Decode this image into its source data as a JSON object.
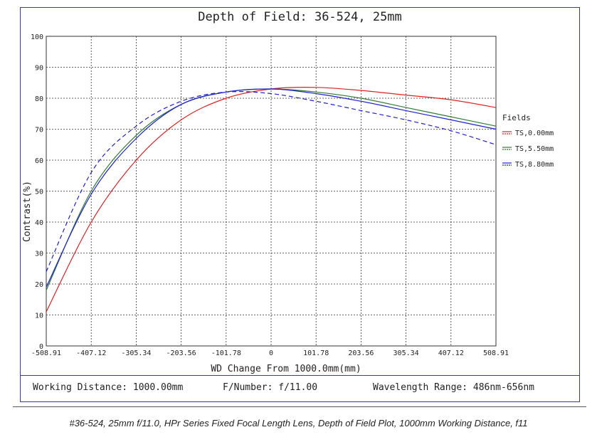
{
  "chart_data": {
    "type": "line",
    "title": "Depth of Field: 36-524, 25mm",
    "xlabel": "WD Change From 1000.0mm(mm)",
    "ylabel": "Contrast(%)",
    "xlim": [
      -508.91,
      508.91
    ],
    "ylim": [
      0,
      100
    ],
    "x_ticks": [
      -508.91,
      -407.12,
      -305.34,
      -203.56,
      -101.78,
      0,
      101.78,
      203.56,
      305.34,
      407.12,
      508.91
    ],
    "x_tick_labels": [
      "-508.91",
      "-407.12",
      "-305.34",
      "-203.56",
      "-101.78",
      "0",
      "101.78",
      "203.56",
      "305.34",
      "407.12",
      "508.91"
    ],
    "y_ticks": [
      0,
      10,
      20,
      30,
      40,
      50,
      60,
      70,
      80,
      90,
      100
    ],
    "y_tick_labels": [
      "0",
      "10",
      "20",
      "30",
      "40",
      "50",
      "60",
      "70",
      "80",
      "90",
      "100"
    ],
    "grid": true,
    "legend_title": "Fields",
    "legend_position": "right",
    "series": [
      {
        "name": "TS,0.00mm",
        "color": "#e02020",
        "tangential_dash": false,
        "x": [
          -508.91,
          -407.12,
          -305.34,
          -203.56,
          -101.78,
          0,
          101.78,
          203.56,
          305.34,
          407.12,
          508.91
        ],
        "values": [
          11,
          40,
          60,
          73,
          80,
          83,
          83.5,
          82.5,
          81,
          79.5,
          77
        ]
      },
      {
        "name": "TS,5.50mm",
        "color": "#2e7d32",
        "tangential_dash": false,
        "x": [
          -508.91,
          -407.12,
          -305.34,
          -203.56,
          -101.78,
          0,
          101.78,
          203.56,
          305.34,
          407.12,
          508.91
        ],
        "values": [
          18,
          50,
          68,
          78,
          82,
          83,
          82,
          80,
          77,
          74,
          71
        ]
      },
      {
        "name": "TS,8.80mm",
        "color": "#2020d0",
        "tangential_dash": false,
        "x": [
          -508.91,
          -407.12,
          -305.34,
          -203.56,
          -101.78,
          0,
          101.78,
          203.56,
          305.34,
          407.12,
          508.91
        ],
        "values": [
          19,
          49,
          67,
          78,
          82,
          83,
          81.5,
          79,
          76,
          73,
          70
        ]
      },
      {
        "name": "",
        "color": "#2020d0",
        "tangential_dash": true,
        "x": [
          -508.91,
          -407.12,
          -305.34,
          -203.56,
          -101.78,
          0,
          101.78,
          203.56,
          305.34,
          407.12,
          508.91
        ],
        "values": [
          24,
          56,
          71,
          79,
          82,
          81.5,
          79,
          76,
          73,
          69.5,
          65
        ]
      }
    ]
  },
  "info_bar": {
    "working_distance": "Working Distance: 1000.00mm",
    "f_number": "F/Number: f/11.00",
    "wavelength": "Wavelength Range: 486nm-656nm"
  },
  "caption": "#36-524, 25mm f/11.0, HPr Series Fixed Focal Length Lens, Depth of Field Plot, 1000mm Working Distance, f11"
}
